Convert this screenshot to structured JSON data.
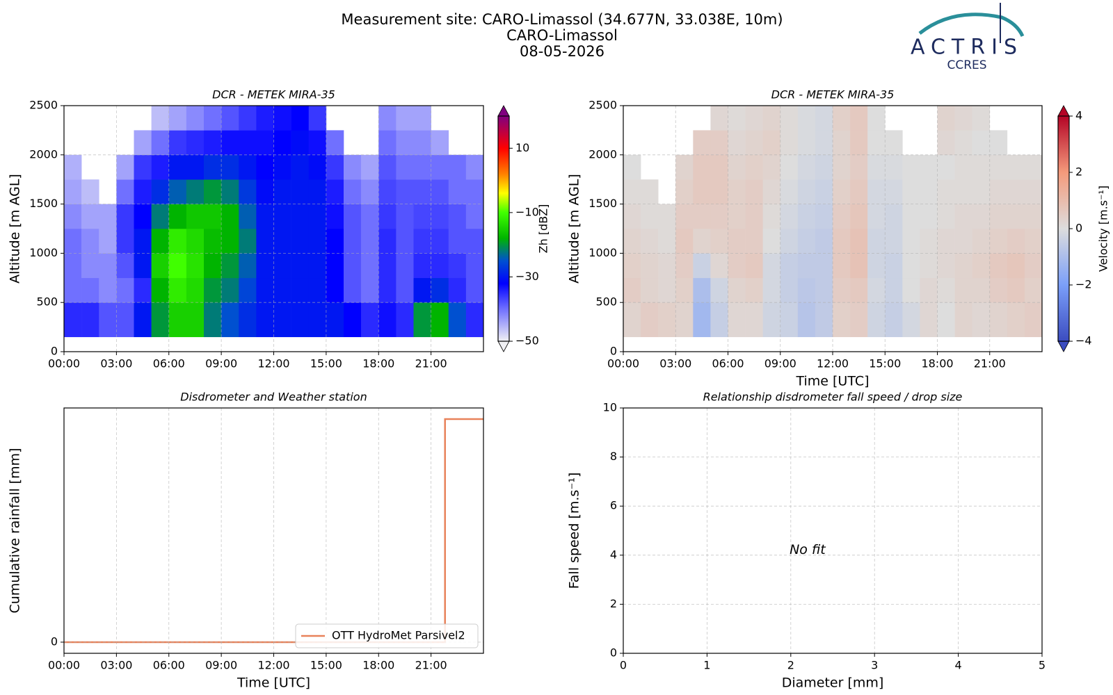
{
  "header": {
    "lines": [
      "Measurement site: CARO-Limassol (34.677N, 33.038E, 10m)",
      "CARO-Limassol",
      "08-05-2026"
    ]
  },
  "logo": {
    "name": "ACTRIS",
    "sub": "CCRES"
  },
  "chart_data": [
    {
      "type": "heatmap",
      "title": "DCR - METEK MIRA-35",
      "ylabel": "Altitude [m AGL]",
      "colorbar_label": "Zh [dBZ]",
      "clim": [
        -50,
        20
      ],
      "colorbar_ticks": [
        {
          "value": -50,
          "label": "−50"
        },
        {
          "value": -30,
          "label": "−30"
        },
        {
          "value": -10,
          "label": "−10"
        },
        10
      ],
      "colorscale": [
        [
          -50,
          "#f0f0f4"
        ],
        [
          -40,
          "#7070ff"
        ],
        [
          -32,
          "#0000ff"
        ],
        [
          -25,
          "#0050d0"
        ],
        [
          -18,
          "#00b400"
        ],
        [
          -10,
          "#40ff00"
        ],
        [
          -4,
          "#ffff00"
        ],
        [
          2,
          "#ff8000"
        ],
        [
          10,
          "#ff0000"
        ],
        [
          20,
          "#800080"
        ]
      ],
      "xlim": [
        0,
        24
      ],
      "ylim": [
        0,
        2500
      ],
      "grid": true,
      "xticks": [
        {
          "value": 0,
          "label": "00:00"
        },
        {
          "value": 3,
          "label": "03:00"
        },
        {
          "value": 6,
          "label": "06:00"
        },
        {
          "value": 9,
          "label": "09:00"
        },
        {
          "value": 12,
          "label": "12:00"
        },
        {
          "value": 15,
          "label": "15:00"
        },
        {
          "value": 18,
          "label": "18:00"
        },
        {
          "value": 21,
          "label": "21:00"
        }
      ],
      "yticks": [
        0,
        500,
        1000,
        1500,
        2000,
        2500
      ],
      "x_edges": [
        0,
        1,
        2,
        3,
        4,
        5,
        6,
        7,
        8,
        9,
        10,
        11,
        12,
        13,
        14,
        15,
        16,
        17,
        18,
        19,
        20,
        21,
        22,
        23,
        24
      ],
      "y_edges": [
        150,
        500,
        750,
        1000,
        1250,
        1500,
        1750,
        2000,
        2250,
        2500
      ],
      "z": [
        [
          -35,
          -35,
          -38,
          -38,
          -30,
          -20,
          -15,
          -15,
          -22,
          -25,
          -28,
          -30,
          -30,
          -30,
          -30,
          -30,
          -32,
          -35,
          -33,
          -35,
          -20,
          -18,
          -25,
          -35
        ],
        [
          -40,
          -40,
          -42,
          -40,
          -35,
          -18,
          -12,
          -14,
          -20,
          -22,
          -26,
          -30,
          -30,
          -30,
          -30,
          -32,
          -38,
          -40,
          -35,
          -38,
          -30,
          -28,
          -35,
          -38
        ],
        [
          -40,
          -42,
          -42,
          -38,
          -30,
          -15,
          -10,
          -13,
          -18,
          -20,
          -24,
          -30,
          -30,
          -30,
          -30,
          -32,
          -38,
          -40,
          -35,
          -38,
          -35,
          -35,
          -36,
          -38
        ],
        [
          -40,
          -42,
          -44,
          -36,
          -30,
          -18,
          -12,
          -14,
          -17,
          -18,
          -22,
          -30,
          -30,
          -30,
          -30,
          -32,
          -38,
          -40,
          -35,
          -38,
          -36,
          -36,
          -38,
          -38
        ],
        [
          -42,
          -44,
          -44,
          -36,
          -32,
          -22,
          -18,
          -16,
          -16,
          -18,
          -24,
          -30,
          -30,
          -30,
          -30,
          -33,
          -38,
          -40,
          -36,
          -38,
          -37,
          -37,
          -38,
          -40
        ],
        [
          -44,
          -46,
          null,
          -40,
          -34,
          -28,
          -24,
          -22,
          -20,
          -22,
          -27,
          -31,
          -30,
          -30,
          -30,
          -34,
          -40,
          -42,
          -37,
          -38,
          -38,
          -38,
          -40,
          -40
        ],
        [
          -45,
          null,
          null,
          -44,
          -36,
          -34,
          -30,
          -30,
          -28,
          -28,
          -30,
          -32,
          -31,
          -30,
          -31,
          -36,
          -42,
          -44,
          -38,
          -40,
          -40,
          -40,
          -40,
          -42
        ],
        [
          null,
          null,
          null,
          null,
          -44,
          -40,
          -36,
          -35,
          -34,
          -33,
          -33,
          -33,
          -32,
          -31,
          -33,
          -40,
          null,
          null,
          -40,
          -42,
          -42,
          -44,
          null,
          null
        ],
        [
          null,
          null,
          null,
          null,
          null,
          -46,
          -44,
          -42,
          -40,
          -38,
          -36,
          -34,
          -33,
          -32,
          -36,
          null,
          null,
          null,
          -42,
          -44,
          -44,
          null,
          null,
          null
        ]
      ]
    },
    {
      "type": "heatmap",
      "title": "DCR - METEK MIRA-35",
      "ylabel": "Altitude [m AGL]",
      "xlabel": "Time [UTC]",
      "colorbar_label": "Velocity [m.s⁻¹]",
      "clim": [
        -4,
        4
      ],
      "colorbar_ticks": [
        {
          "value": -4,
          "label": "−4"
        },
        {
          "value": -2,
          "label": "−2"
        },
        0,
        2,
        4
      ],
      "colorscale": [
        [
          -4,
          "#3b4cc0"
        ],
        [
          -2,
          "#7b9ff9"
        ],
        [
          0,
          "#dddddd"
        ],
        [
          2,
          "#f49a7b"
        ],
        [
          4,
          "#b40426"
        ]
      ],
      "xlim": [
        0,
        24
      ],
      "ylim": [
        0,
        2500
      ],
      "grid": true,
      "xticks": [
        {
          "value": 0,
          "label": "00:00"
        },
        {
          "value": 3,
          "label": "03:00"
        },
        {
          "value": 6,
          "label": "06:00"
        },
        {
          "value": 9,
          "label": "09:00"
        },
        {
          "value": 12,
          "label": "12:00"
        },
        {
          "value": 15,
          "label": "15:00"
        },
        {
          "value": 18,
          "label": "18:00"
        },
        {
          "value": 21,
          "label": "21:00"
        }
      ],
      "yticks": [
        0,
        500,
        1000,
        1500,
        2000,
        2500
      ],
      "x_edges": [
        0,
        1,
        2,
        3,
        4,
        5,
        6,
        7,
        8,
        9,
        10,
        11,
        12,
        13,
        14,
        15,
        16,
        17,
        18,
        19,
        20,
        21,
        22,
        23,
        24
      ],
      "y_edges": [
        150,
        500,
        750,
        1000,
        1250,
        1500,
        1750,
        2000,
        2250,
        2500
      ],
      "z": [
        [
          0.3,
          0.5,
          0.4,
          0.3,
          -1.2,
          -0.5,
          0.2,
          0.2,
          -0.3,
          -0.4,
          -0.8,
          -0.6,
          0.4,
          0.5,
          -0.3,
          -0.5,
          -0.2,
          0.2,
          0,
          0.3,
          0.2,
          0.3,
          0.4,
          0.5
        ],
        [
          0.5,
          0.3,
          0.2,
          0.4,
          -1.0,
          -0.3,
          0.3,
          0.4,
          -0.2,
          -0.5,
          -0.7,
          -0.6,
          0.5,
          0.6,
          -0.2,
          -0.4,
          0,
          0.2,
          0.1,
          0.3,
          0.3,
          0.5,
          0.6,
          0.4
        ],
        [
          0.4,
          0.3,
          0.2,
          0.5,
          -0.4,
          0.2,
          0.5,
          0.6,
          -0.2,
          -0.5,
          -0.6,
          -0.6,
          0.6,
          0.8,
          -0.3,
          -0.4,
          0,
          0.1,
          0.2,
          0.3,
          0.4,
          0.6,
          0.7,
          0.5
        ],
        [
          0.3,
          0.2,
          0.1,
          0.6,
          0.3,
          0.4,
          0.5,
          0.5,
          0,
          -0.3,
          -0.5,
          -0.6,
          0.6,
          0.8,
          -0.3,
          -0.3,
          0,
          0.1,
          0.2,
          0.2,
          0.3,
          0.4,
          0.5,
          0.4
        ],
        [
          0.2,
          0.1,
          0.1,
          0.5,
          0.5,
          0.5,
          0.4,
          0.5,
          0.1,
          -0.2,
          -0.4,
          -0.5,
          0.5,
          0.7,
          -0.2,
          -0.3,
          0,
          0,
          0.1,
          0.2,
          0.2,
          0.3,
          0.3,
          0.3
        ],
        [
          0.1,
          0.1,
          null,
          0.4,
          0.6,
          0.6,
          0.4,
          0.5,
          0.2,
          -0.1,
          -0.3,
          -0.4,
          0.4,
          0.6,
          -0.2,
          -0.2,
          0,
          0,
          0.1,
          0.1,
          0.1,
          0.2,
          0.2,
          0.2
        ],
        [
          0,
          null,
          null,
          0.3,
          0.6,
          0.6,
          0.3,
          0.4,
          0.3,
          0,
          -0.2,
          -0.3,
          0.3,
          0.5,
          -0.1,
          -0.1,
          0,
          0,
          0,
          0.1,
          0.1,
          0.1,
          0.1,
          0.1
        ],
        [
          null,
          null,
          null,
          null,
          0.5,
          0.5,
          0.2,
          0.3,
          0.4,
          0.1,
          -0.1,
          -0.2,
          0.3,
          0.6,
          0,
          0,
          null,
          null,
          0.2,
          0.1,
          0,
          0,
          null,
          null
        ],
        [
          null,
          null,
          null,
          null,
          null,
          0.2,
          0.1,
          0.2,
          0.3,
          0.1,
          -0.1,
          -0.2,
          0.4,
          0.6,
          0,
          null,
          null,
          null,
          0.3,
          0.2,
          0.1,
          null,
          null,
          null
        ]
      ]
    },
    {
      "type": "line",
      "title": "Disdrometer and Weather station",
      "ylabel": "Cumulative rainfall [mm]",
      "xlabel": "Time [UTC]",
      "xlim": [
        0,
        24
      ],
      "ylim": [
        -0.01,
        0.21
      ],
      "grid": true,
      "legend": "lower right",
      "drawstyle": "steps-post",
      "xticks": [
        {
          "value": 0,
          "label": "00:00"
        },
        {
          "value": 3,
          "label": "03:00"
        },
        {
          "value": 6,
          "label": "06:00"
        },
        {
          "value": 9,
          "label": "09:00"
        },
        {
          "value": 12,
          "label": "12:00"
        },
        {
          "value": 15,
          "label": "15:00"
        },
        {
          "value": 18,
          "label": "18:00"
        },
        {
          "value": 21,
          "label": "21:00"
        }
      ],
      "yticks": [
        0
      ],
      "x": [
        0,
        21.8,
        24
      ],
      "series": [
        {
          "name": "OTT HydroMet Parsivel2",
          "color": "#e8825a",
          "values": [
            0,
            0.2,
            0.2
          ]
        }
      ]
    },
    {
      "type": "scatter",
      "title": "Relationship disdrometer fall speed / drop size",
      "ylabel": "Fall speed [m.s⁻¹]",
      "xlabel": "Diameter [mm]",
      "annotation": "No fit",
      "xlim": [
        0,
        5
      ],
      "ylim": [
        0,
        10
      ],
      "grid": true,
      "xticks": [
        0,
        1,
        2,
        3,
        4,
        5
      ],
      "yticks": [
        0,
        2,
        4,
        6,
        8,
        10
      ]
    }
  ]
}
